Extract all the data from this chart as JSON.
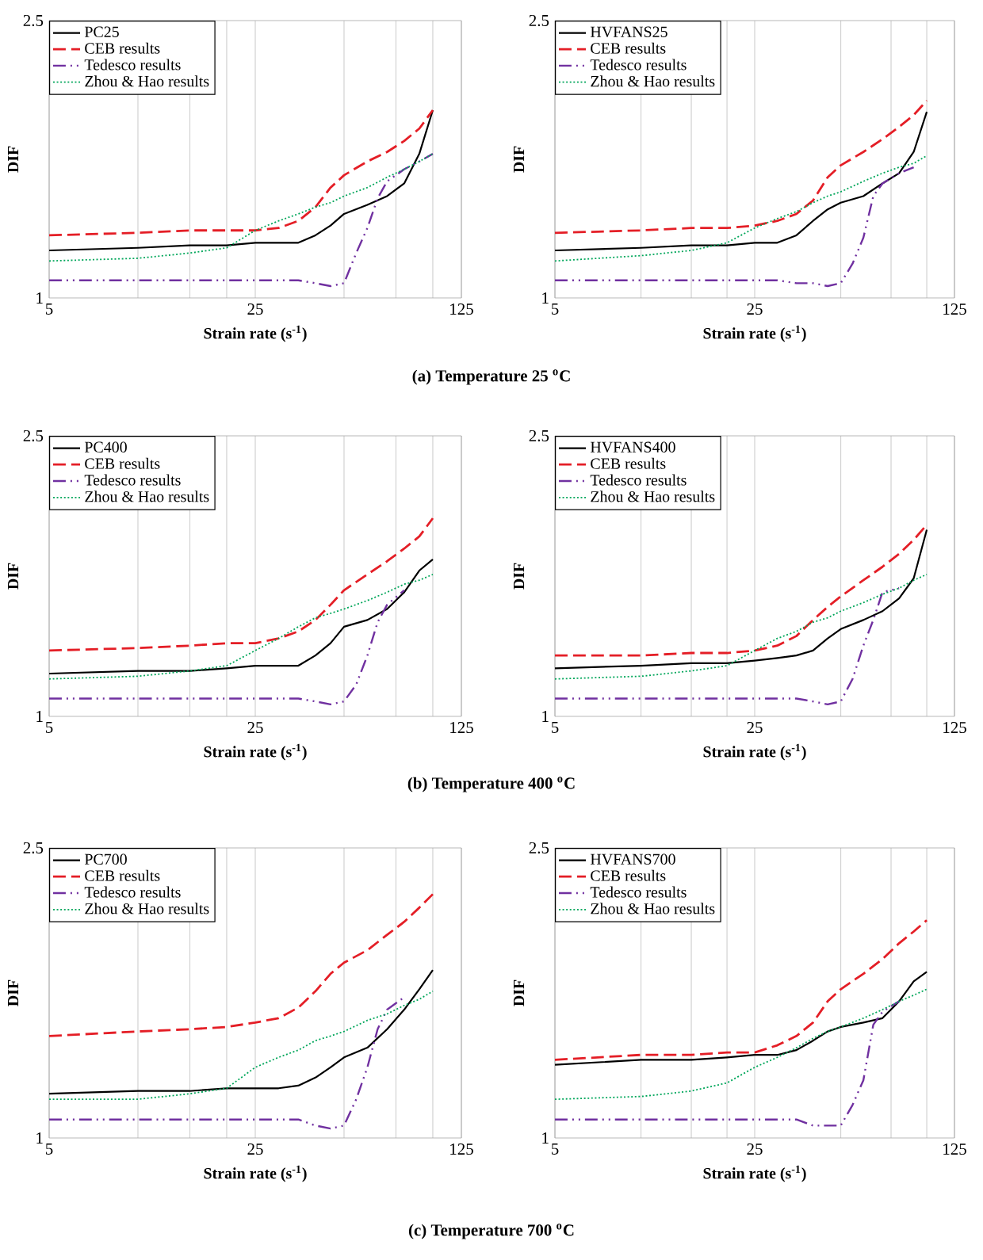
{
  "chart_data": [
    {
      "type": "line",
      "xlabel": "Strain rate (s$^{-1}$)",
      "ylabel": "DIF",
      "log": "xy",
      "grid": "x",
      "legend": "top left",
      "xlim": [
        5,
        125
      ],
      "ylim": [
        1,
        2.5
      ],
      "xticks": [
        5,
        {
          "value": 10,
          "label": null
        },
        {
          "value": 15,
          "label": null
        },
        {
          "value": 20,
          "label": null
        },
        25,
        {
          "value": 50,
          "label": null
        },
        {
          "value": 75,
          "label": null
        },
        {
          "value": 100,
          "label": null
        },
        125
      ],
      "yticks": [
        1,
        2.5
      ],
      "x": [
        5,
        10,
        15,
        20,
        25,
        30,
        35,
        40,
        45,
        50,
        60,
        70,
        80,
        90,
        100
      ],
      "series": [
        {
          "name": "PC25",
          "color": "#000000",
          "line_style": "solid",
          "values": [
            1.17,
            1.18,
            1.19,
            1.19,
            1.2,
            1.2,
            1.2,
            1.23,
            1.27,
            1.32,
            1.36,
            1.4,
            1.46,
            1.61,
            1.86
          ]
        },
        {
          "name": "CEB results",
          "color": "#e41e26",
          "line_style": "dashed",
          "values": [
            1.23,
            1.24,
            1.25,
            1.25,
            1.25,
            1.26,
            1.29,
            1.35,
            1.44,
            1.5,
            1.57,
            1.62,
            1.68,
            1.75,
            1.86
          ]
        },
        {
          "name": "Tedesco results",
          "color": "#7030a0",
          "line_style": "dashdotdot",
          "x": [
            5,
            10,
            15,
            20,
            25,
            30,
            35,
            40,
            45,
            50,
            55,
            60,
            65,
            70,
            80,
            90,
            100
          ],
          "values": [
            1.06,
            1.06,
            1.06,
            1.06,
            1.06,
            1.06,
            1.06,
            1.05,
            1.04,
            1.05,
            1.16,
            1.26,
            1.39,
            1.47,
            1.53,
            1.57,
            1.61
          ]
        },
        {
          "name": "Zhou & Hao results",
          "color": "#00a65a",
          "line_style": "dotted",
          "values": [
            1.13,
            1.14,
            1.16,
            1.18,
            1.25,
            1.29,
            1.32,
            1.35,
            1.37,
            1.4,
            1.44,
            1.49,
            1.53,
            1.57,
            1.61
          ]
        }
      ],
      "annotations": [
        "(a)  Temperature 25 $^{o}$C"
      ]
    },
    {
      "type": "line",
      "xlabel": "Strain rate (s$^{-1}$)",
      "ylabel": "DIF",
      "log": "xy",
      "grid": "x",
      "legend": "top left",
      "xlim": [
        5,
        125
      ],
      "ylim": [
        1,
        2.5
      ],
      "xticks": [
        5,
        {
          "value": 10,
          "label": null
        },
        {
          "value": 15,
          "label": null
        },
        {
          "value": 20,
          "label": null
        },
        25,
        {
          "value": 50,
          "label": null
        },
        {
          "value": 75,
          "label": null
        },
        {
          "value": 100,
          "label": null
        },
        125
      ],
      "yticks": [
        1,
        2.5
      ],
      "x": [
        5,
        10,
        15,
        20,
        25,
        30,
        35,
        40,
        45,
        50,
        60,
        70,
        80,
        90,
        100
      ],
      "series": [
        {
          "name": "HVFANS25",
          "color": "#000000",
          "line_style": "solid",
          "values": [
            1.17,
            1.18,
            1.19,
            1.19,
            1.2,
            1.2,
            1.23,
            1.29,
            1.34,
            1.37,
            1.4,
            1.46,
            1.51,
            1.62,
            1.85
          ]
        },
        {
          "name": "CEB results",
          "color": "#e41e26",
          "line_style": "dashed",
          "values": [
            1.24,
            1.25,
            1.26,
            1.26,
            1.27,
            1.29,
            1.32,
            1.38,
            1.49,
            1.55,
            1.62,
            1.69,
            1.76,
            1.83,
            1.92
          ]
        },
        {
          "name": "Tedesco results",
          "color": "#7030a0",
          "line_style": "dashdotdot",
          "x": [
            5,
            10,
            15,
            20,
            25,
            30,
            35,
            40,
            45,
            50,
            55,
            60,
            65,
            70,
            80,
            90
          ],
          "values": [
            1.06,
            1.06,
            1.06,
            1.06,
            1.06,
            1.06,
            1.05,
            1.05,
            1.04,
            1.05,
            1.12,
            1.22,
            1.4,
            1.46,
            1.51,
            1.54
          ]
        },
        {
          "name": "Zhou & Hao results",
          "color": "#00a65a",
          "line_style": "dotted",
          "values": [
            1.13,
            1.15,
            1.17,
            1.2,
            1.26,
            1.3,
            1.33,
            1.37,
            1.4,
            1.42,
            1.47,
            1.51,
            1.54,
            1.56,
            1.6
          ]
        }
      ]
    },
    {
      "type": "line",
      "xlabel": "Strain rate (s$^{-1}$)",
      "ylabel": "DIF",
      "log": "xy",
      "grid": "x",
      "legend": "top left",
      "xlim": [
        5,
        125
      ],
      "ylim": [
        1,
        2.5
      ],
      "xticks": [
        5,
        {
          "value": 10,
          "label": null
        },
        {
          "value": 15,
          "label": null
        },
        {
          "value": 20,
          "label": null
        },
        25,
        {
          "value": 50,
          "label": null
        },
        {
          "value": 75,
          "label": null
        },
        {
          "value": 100,
          "label": null
        },
        125
      ],
      "yticks": [
        1,
        2.5
      ],
      "x": [
        5,
        10,
        15,
        20,
        25,
        30,
        35,
        40,
        45,
        50,
        60,
        70,
        80,
        90,
        100
      ],
      "series": [
        {
          "name": "PC400",
          "color": "#000000",
          "line_style": "solid",
          "values": [
            1.15,
            1.16,
            1.16,
            1.17,
            1.18,
            1.18,
            1.18,
            1.22,
            1.27,
            1.34,
            1.37,
            1.42,
            1.5,
            1.61,
            1.67
          ]
        },
        {
          "name": "CEB results",
          "color": "#e41e26",
          "line_style": "dashed",
          "values": [
            1.24,
            1.25,
            1.26,
            1.27,
            1.27,
            1.29,
            1.32,
            1.37,
            1.44,
            1.51,
            1.59,
            1.66,
            1.73,
            1.8,
            1.91
          ]
        },
        {
          "name": "Tedesco results",
          "color": "#7030a0",
          "line_style": "dashdotdot",
          "x": [
            5,
            10,
            15,
            20,
            25,
            30,
            35,
            40,
            45,
            50,
            55,
            60,
            65,
            70,
            80
          ],
          "values": [
            1.06,
            1.06,
            1.06,
            1.06,
            1.06,
            1.06,
            1.06,
            1.05,
            1.04,
            1.05,
            1.11,
            1.22,
            1.36,
            1.44,
            1.51
          ]
        },
        {
          "name": "Zhou & Hao results",
          "color": "#00a65a",
          "line_style": "dotted",
          "values": [
            1.13,
            1.14,
            1.16,
            1.18,
            1.24,
            1.29,
            1.34,
            1.38,
            1.4,
            1.42,
            1.46,
            1.5,
            1.54,
            1.56,
            1.59
          ]
        }
      ],
      "annotations": [
        "(b)  Temperature 400 $^{o}$C"
      ]
    },
    {
      "type": "line",
      "xlabel": "Strain rate (s$^{-1}$)",
      "ylabel": "DIF",
      "log": "xy",
      "grid": "x",
      "legend": "top left",
      "xlim": [
        5,
        125
      ],
      "ylim": [
        1,
        2.5
      ],
      "xticks": [
        5,
        {
          "value": 10,
          "label": null
        },
        {
          "value": 15,
          "label": null
        },
        {
          "value": 20,
          "label": null
        },
        25,
        {
          "value": 50,
          "label": null
        },
        {
          "value": 75,
          "label": null
        },
        {
          "value": 100,
          "label": null
        },
        125
      ],
      "yticks": [
        1,
        2.5
      ],
      "x": [
        5,
        10,
        15,
        20,
        25,
        30,
        35,
        40,
        45,
        50,
        60,
        70,
        80,
        90,
        100
      ],
      "series": [
        {
          "name": "HVFANS400",
          "color": "#000000",
          "line_style": "solid",
          "values": [
            1.17,
            1.18,
            1.19,
            1.19,
            1.2,
            1.21,
            1.22,
            1.24,
            1.29,
            1.33,
            1.37,
            1.41,
            1.47,
            1.57,
            1.84
          ]
        },
        {
          "name": "CEB results",
          "color": "#e41e26",
          "line_style": "dashed",
          "values": [
            1.22,
            1.22,
            1.23,
            1.23,
            1.24,
            1.26,
            1.3,
            1.37,
            1.43,
            1.48,
            1.56,
            1.63,
            1.7,
            1.78,
            1.87
          ]
        },
        {
          "name": "Tedesco results",
          "color": "#7030a0",
          "line_style": "dashdotdot",
          "x": [
            5,
            10,
            15,
            20,
            25,
            30,
            35,
            40,
            45,
            50,
            55,
            60,
            65,
            70,
            80
          ],
          "values": [
            1.06,
            1.06,
            1.06,
            1.06,
            1.06,
            1.06,
            1.06,
            1.05,
            1.04,
            1.05,
            1.13,
            1.26,
            1.37,
            1.5,
            1.52
          ]
        },
        {
          "name": "Zhou & Hao results",
          "color": "#00a65a",
          "line_style": "dotted",
          "values": [
            1.13,
            1.14,
            1.16,
            1.18,
            1.24,
            1.29,
            1.32,
            1.36,
            1.38,
            1.41,
            1.45,
            1.49,
            1.52,
            1.56,
            1.59
          ]
        }
      ]
    },
    {
      "type": "line",
      "xlabel": "Strain rate (s$^{-1}$)",
      "ylabel": "DIF",
      "log": "xy",
      "grid": "x",
      "legend": "top left",
      "xlim": [
        5,
        125
      ],
      "ylim": [
        1,
        2.5
      ],
      "xticks": [
        5,
        {
          "value": 10,
          "label": null
        },
        {
          "value": 15,
          "label": null
        },
        {
          "value": 20,
          "label": null
        },
        25,
        {
          "value": 50,
          "label": null
        },
        {
          "value": 75,
          "label": null
        },
        {
          "value": 100,
          "label": null
        },
        125
      ],
      "yticks": [
        1,
        2.5
      ],
      "x": [
        5,
        10,
        15,
        20,
        25,
        30,
        35,
        40,
        45,
        50,
        60,
        70,
        80,
        90,
        100
      ],
      "series": [
        {
          "name": "PC700",
          "color": "#000000",
          "line_style": "solid",
          "values": [
            1.15,
            1.16,
            1.16,
            1.17,
            1.17,
            1.17,
            1.18,
            1.21,
            1.25,
            1.29,
            1.33,
            1.41,
            1.5,
            1.6,
            1.7
          ]
        },
        {
          "name": "CEB results",
          "color": "#e41e26",
          "line_style": "dashed",
          "values": [
            1.38,
            1.4,
            1.41,
            1.42,
            1.44,
            1.46,
            1.51,
            1.59,
            1.68,
            1.74,
            1.81,
            1.9,
            1.98,
            2.07,
            2.16
          ]
        },
        {
          "name": "Tedesco results",
          "color": "#7030a0",
          "line_style": "dashdotdot",
          "x": [
            5,
            10,
            15,
            20,
            25,
            30,
            35,
            40,
            45,
            50,
            55,
            60,
            65,
            70,
            80
          ],
          "values": [
            1.06,
            1.06,
            1.06,
            1.06,
            1.06,
            1.06,
            1.06,
            1.04,
            1.03,
            1.04,
            1.13,
            1.25,
            1.41,
            1.5,
            1.56
          ]
        },
        {
          "name": "Zhou & Hao results",
          "color": "#00a65a",
          "line_style": "dotted",
          "values": [
            1.13,
            1.13,
            1.15,
            1.17,
            1.25,
            1.29,
            1.32,
            1.36,
            1.38,
            1.4,
            1.45,
            1.48,
            1.52,
            1.55,
            1.59
          ]
        }
      ],
      "annotations": [
        "(c)  Temperature 700 $^{o}$C"
      ]
    },
    {
      "type": "line",
      "xlabel": "Strain rate (s$^{-1}$)",
      "ylabel": "DIF",
      "log": "xy",
      "grid": "x",
      "legend": "top left",
      "xlim": [
        5,
        125
      ],
      "ylim": [
        1,
        2.5
      ],
      "xticks": [
        5,
        {
          "value": 10,
          "label": null
        },
        {
          "value": 15,
          "label": null
        },
        {
          "value": 20,
          "label": null
        },
        25,
        {
          "value": 50,
          "label": null
        },
        {
          "value": 75,
          "label": null
        },
        {
          "value": 100,
          "label": null
        },
        125
      ],
      "yticks": [
        1,
        2.5
      ],
      "x": [
        5,
        10,
        15,
        20,
        25,
        30,
        35,
        40,
        45,
        50,
        60,
        70,
        80,
        90,
        100
      ],
      "series": [
        {
          "name": "HVFANS700",
          "color": "#000000",
          "line_style": "solid",
          "values": [
            1.26,
            1.28,
            1.28,
            1.29,
            1.3,
            1.3,
            1.32,
            1.36,
            1.4,
            1.42,
            1.44,
            1.46,
            1.54,
            1.64,
            1.69
          ]
        },
        {
          "name": "CEB results",
          "color": "#e41e26",
          "line_style": "dashed",
          "values": [
            1.28,
            1.3,
            1.3,
            1.31,
            1.31,
            1.34,
            1.38,
            1.44,
            1.54,
            1.6,
            1.68,
            1.76,
            1.85,
            1.92,
            1.99
          ]
        },
        {
          "name": "Tedesco results",
          "color": "#7030a0",
          "line_style": "dashdotdot",
          "x": [
            5,
            10,
            15,
            20,
            25,
            30,
            35,
            40,
            45,
            50,
            55,
            60,
            65,
            70,
            80
          ],
          "values": [
            1.06,
            1.06,
            1.06,
            1.06,
            1.06,
            1.06,
            1.06,
            1.04,
            1.04,
            1.04,
            1.11,
            1.2,
            1.43,
            1.49,
            1.54
          ]
        },
        {
          "name": "Zhou & Hao results",
          "color": "#00a65a",
          "line_style": "dotted",
          "values": [
            1.13,
            1.14,
            1.16,
            1.19,
            1.25,
            1.29,
            1.33,
            1.37,
            1.4,
            1.42,
            1.46,
            1.5,
            1.54,
            1.57,
            1.6
          ]
        }
      ]
    }
  ]
}
